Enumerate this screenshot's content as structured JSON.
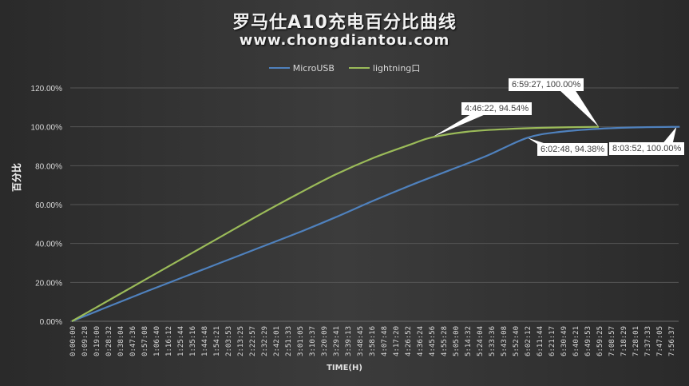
{
  "header": {
    "title": "罗马仕A10充电百分比曲线",
    "subtitle": "www.chongdiantou.com"
  },
  "legend": [
    {
      "label": "MicroUSB",
      "color": "#4f81bd"
    },
    {
      "label": "lightning口",
      "color": "#9bbb59"
    }
  ],
  "axes": {
    "ylabel": "百分比",
    "xlabel": "TIME(H)"
  },
  "callouts": [
    {
      "text": "4:46:22, 94.54%",
      "series": "lightning口"
    },
    {
      "text": "6:59:27, 100.00%",
      "series": "lightning口"
    },
    {
      "text": "6:02:48, 94.38%",
      "series": "MicroUSB"
    },
    {
      "text": "8:03:52, 100.00%",
      "series": "MicroUSB"
    }
  ],
  "chart_data": {
    "type": "line",
    "title": "罗马仕A10充电百分比曲线",
    "subtitle": "www.chongdiantou.com",
    "xlabel": "TIME(H)",
    "ylabel": "百分比",
    "ylim": [
      0,
      120
    ],
    "yticks": [
      "0.00%",
      "20.00%",
      "40.00%",
      "60.00%",
      "80.00%",
      "100.00%",
      "120.00%"
    ],
    "grid": true,
    "legend_position": "top",
    "xticks": [
      "0:00:00",
      "0:09:28",
      "0:19:00",
      "0:28:32",
      "0:38:04",
      "0:47:36",
      "0:57:08",
      "1:06:40",
      "1:16:12",
      "1:25:44",
      "1:35:16",
      "1:44:48",
      "1:54:21",
      "2:03:53",
      "2:13:25",
      "2:22:57",
      "2:32:29",
      "2:42:01",
      "2:51:33",
      "3:01:05",
      "3:10:37",
      "3:20:09",
      "3:29:41",
      "3:39:13",
      "3:48:45",
      "3:58:16",
      "4:07:48",
      "4:17:20",
      "4:26:52",
      "4:36:24",
      "4:45:56",
      "4:55:28",
      "5:05:00",
      "5:14:32",
      "5:24:04",
      "5:33:36",
      "5:43:08",
      "5:52:40",
      "6:02:12",
      "6:11:44",
      "6:21:17",
      "6:30:49",
      "6:40:21",
      "6:49:53",
      "6:59:25",
      "7:08:57",
      "7:18:29",
      "7:28:01",
      "7:37:33",
      "7:47:05",
      "7:56:37"
    ],
    "series": [
      {
        "name": "MicroUSB",
        "color": "#4f81bd",
        "x_seconds": [
          0,
          1800,
          3600,
          5400,
          7200,
          9000,
          10800,
          12600,
          14400,
          16200,
          18000,
          19800,
          21768,
          23400,
          25200,
          27000,
          29032
        ],
        "values": [
          0,
          7.8,
          15.5,
          23.0,
          30.5,
          38.0,
          45.5,
          53.5,
          62.0,
          70.0,
          77.5,
          85.0,
          94.38,
          97.5,
          99.0,
          99.7,
          100.0
        ]
      },
      {
        "name": "lightning口",
        "color": "#9bbb59",
        "x_seconds": [
          0,
          1800,
          3600,
          5400,
          7200,
          9000,
          10800,
          12600,
          14400,
          16200,
          17182,
          18900,
          20700,
          22500,
          25167
        ],
        "values": [
          0,
          11.0,
          22.0,
          33.0,
          44.0,
          55.0,
          65.5,
          75.5,
          84.0,
          91.0,
          94.54,
          97.5,
          98.8,
          99.5,
          100.0
        ]
      }
    ],
    "annotations": [
      {
        "series": "lightning口",
        "x": "4:46:22",
        "y": 94.54
      },
      {
        "series": "lightning口",
        "x": "6:59:27",
        "y": 100.0
      },
      {
        "series": "MicroUSB",
        "x": "6:02:48",
        "y": 94.38
      },
      {
        "series": "MicroUSB",
        "x": "8:03:52",
        "y": 100.0
      }
    ]
  }
}
